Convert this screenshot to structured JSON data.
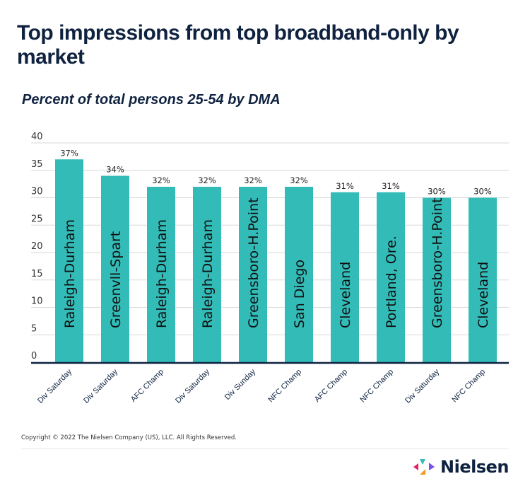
{
  "header": {
    "title": "Top impressions from top broadband-only by market",
    "subtitle": "Percent of total persons 25-54 by DMA"
  },
  "footer": {
    "copyright": "Copyright © 2022 The Nielsen Company (US), LLC. All Rights Reserved.",
    "brand": "Nielsen",
    "logo_icon": "nielsen-arrows-icon"
  },
  "colors": {
    "bar": "#33bbb7",
    "title": "#0f2240",
    "axis": "#0f2240",
    "grid": "#d9d9d9"
  },
  "chart_data": {
    "type": "bar",
    "title": "Top impressions from top broadband-only by market",
    "subtitle": "Percent of total persons 25-54 by DMA",
    "xlabel": "",
    "ylabel": "",
    "ylim": [
      0,
      40
    ],
    "yticks": [
      0,
      5,
      10,
      15,
      20,
      25,
      30,
      35,
      40
    ],
    "grid": true,
    "legend": "none",
    "categories": [
      "Div Saturday",
      "Div Saturday",
      "AFC Champ",
      "Div Saturday",
      "Div Sunday",
      "NFC Champ",
      "AFC Champ",
      "NFC Champ",
      "Div Saturday",
      "NFC Champ"
    ],
    "markets": [
      "Raleigh-Durham",
      "Greenvll-Spart",
      "Raleigh-Durham",
      "Raleigh-Durham",
      "Greensboro-H.Point",
      "San Diego",
      "Cleveland",
      "Portland, Ore.",
      "Greensboro-H.Point",
      "Cleveland"
    ],
    "values": [
      37,
      34,
      32,
      32,
      32,
      32,
      31,
      31,
      30,
      30
    ],
    "data_labels": [
      "37%",
      "34%",
      "32%",
      "32%",
      "32%",
      "32%",
      "31%",
      "31%",
      "30%",
      "30%"
    ]
  }
}
